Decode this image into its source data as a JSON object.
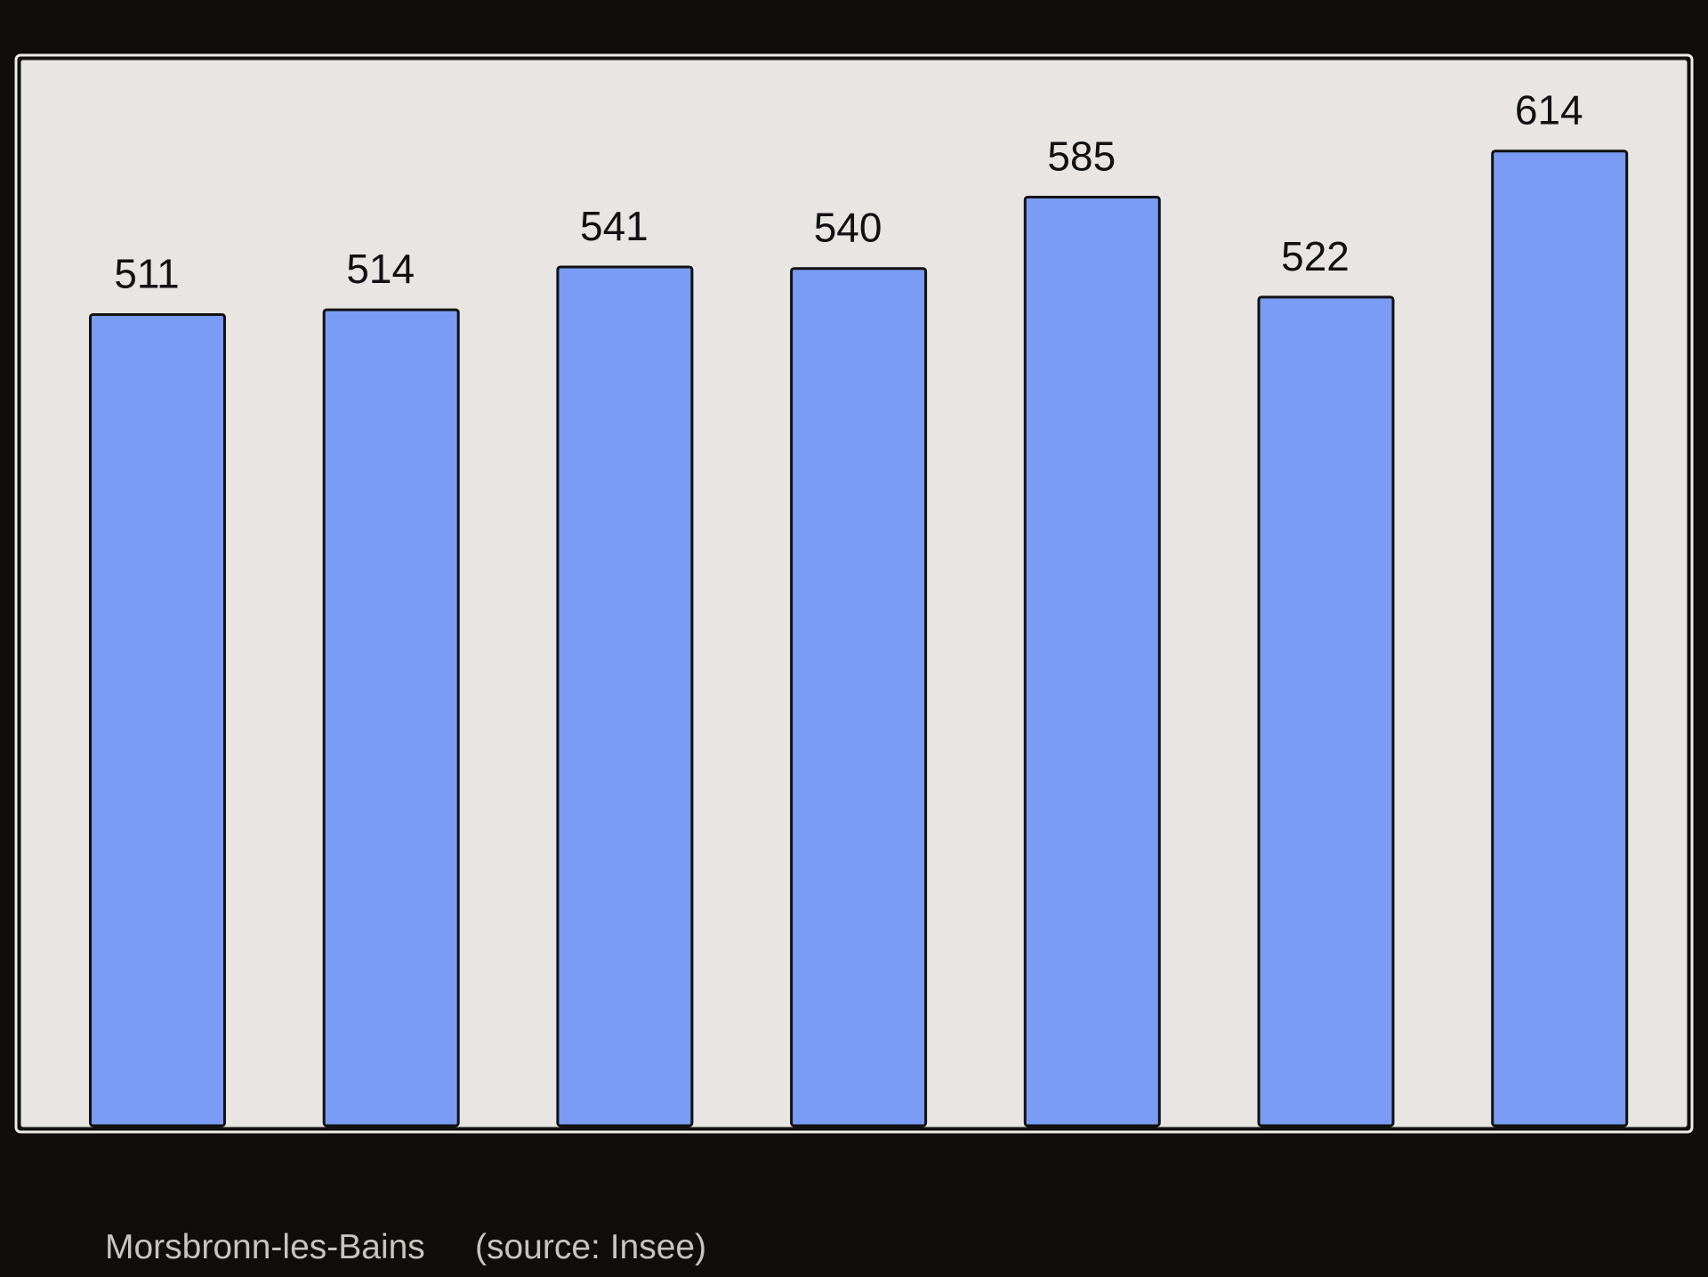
{
  "chart_data": {
    "type": "bar",
    "title": "Morsbronn-les-Bains",
    "source": "(source: Insee)",
    "categories": [
      null,
      null,
      null,
      null,
      null,
      null,
      null
    ],
    "values": [
      511,
      514,
      541,
      540,
      585,
      522,
      614
    ],
    "color": "#7a9cf4",
    "ylim": [
      0,
      680
    ]
  }
}
